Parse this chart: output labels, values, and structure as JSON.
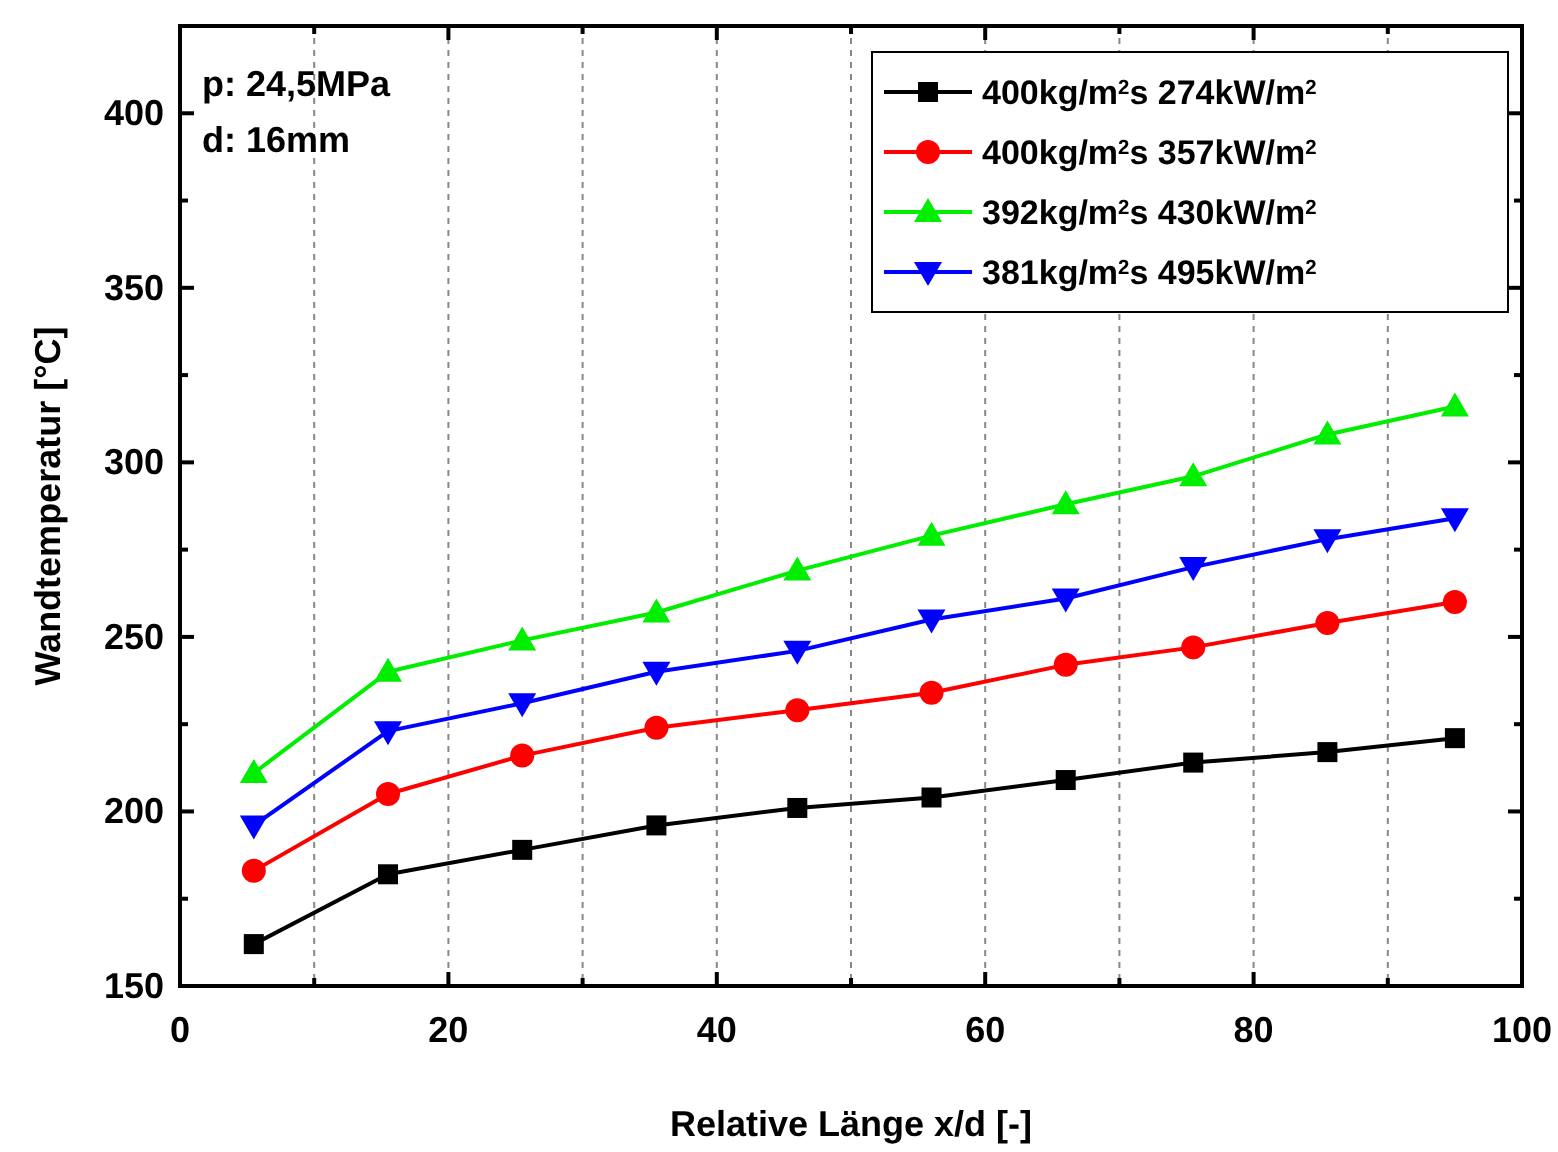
{
  "chart_data": {
    "type": "line",
    "xlabel": "Relative Länge x/d [-]",
    "ylabel": "Wandtemperatur [°C]",
    "annotations": [
      "p: 24,5MPa",
      "d: 16mm"
    ],
    "xlim": [
      0,
      100
    ],
    "xticks": [
      0,
      {
        "value": 10,
        "label": null
      },
      20,
      {
        "value": 30,
        "label": null
      },
      40,
      {
        "value": 50,
        "label": null
      },
      60,
      {
        "value": 70,
        "label": null
      },
      80,
      {
        "value": 90,
        "label": null
      },
      100
    ],
    "ylim": [
      150,
      425
    ],
    "yticks": [
      150,
      {
        "value": 175,
        "label": null
      },
      200,
      {
        "value": 225,
        "label": null
      },
      250,
      {
        "value": 275,
        "label": null
      },
      300,
      {
        "value": 325,
        "label": null
      },
      350,
      {
        "value": 375,
        "label": null
      },
      400
    ],
    "grid": "x",
    "legend": "top right",
    "line_style": "solid",
    "series": [
      {
        "name": "400kg/m$^{2}$s 274kW/m$^{2}$",
        "color": "#000000",
        "marker": "square",
        "x": [
          5.5,
          15.5,
          25.5,
          35.5,
          46,
          56,
          66,
          75.5,
          85.5,
          95
        ],
        "values": [
          162,
          182,
          189,
          196,
          201,
          204,
          209,
          214,
          217,
          221
        ]
      },
      {
        "name": "400kg/m$^{2}$s 357kW/m$^{2}$",
        "color": "#ff0000",
        "marker": "circle",
        "x": [
          5.5,
          15.5,
          25.5,
          35.5,
          46,
          56,
          66,
          75.5,
          85.5,
          95
        ],
        "values": [
          183,
          205,
          216,
          224,
          229,
          234,
          242,
          247,
          254,
          260
        ]
      },
      {
        "name": "392kg/m$^{2}$s 430kW/m$^{2}$",
        "color": "#00ee00",
        "marker": "triangle",
        "x": [
          5.5,
          15.5,
          25.5,
          35.5,
          46,
          56,
          66,
          75.5,
          85.5,
          95
        ],
        "values": [
          211,
          240,
          249,
          257,
          269,
          279,
          288,
          296,
          308,
          316
        ]
      },
      {
        "name": "381kg/m$^{2}$s 495kW/m$^{2}$",
        "color": "#0000ff",
        "marker": "triangle-down",
        "x": [
          5.5,
          15.5,
          25.5,
          35.5,
          46,
          56,
          66,
          75.5,
          85.5,
          95
        ],
        "values": [
          196,
          223,
          231,
          240,
          246,
          255,
          261,
          270,
          278,
          284
        ]
      }
    ]
  }
}
